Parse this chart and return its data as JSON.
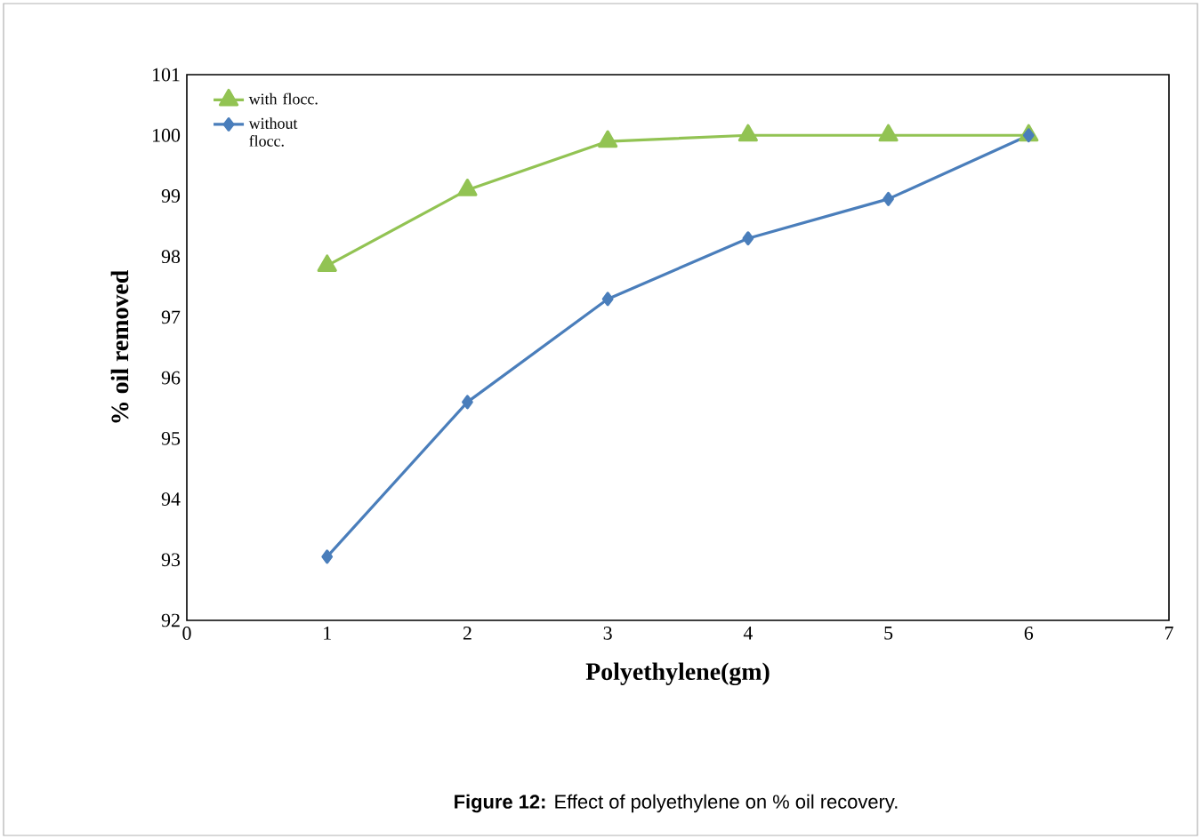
{
  "chart_data": {
    "type": "line",
    "xlabel": "Polyethylene(gm)",
    "ylabel": "% oil removed",
    "x": [
      1,
      2,
      3,
      4,
      5,
      6
    ],
    "series": [
      {
        "name": "with flocc.",
        "color": "#92c353",
        "marker": "triangle",
        "values": [
          97.85,
          99.1,
          99.9,
          100.0,
          100.0,
          100.0
        ]
      },
      {
        "name": "without flocc.",
        "color": "#4a7ebb",
        "marker": "diamond",
        "values": [
          93.05,
          95.6,
          97.3,
          98.3,
          98.95,
          100.0
        ]
      }
    ],
    "xlim": [
      0,
      7
    ],
    "ylim": [
      92,
      101
    ],
    "xticks": [
      0,
      1,
      2,
      3,
      4,
      5,
      6,
      7
    ],
    "yticks": [
      92,
      93,
      94,
      95,
      96,
      97,
      98,
      99,
      100,
      101
    ],
    "grid": false,
    "legend": "top left",
    "line_style": "solid",
    "annotations": [
      "**Figure 12:** Effect of polyethylene on % oil recovery."
    ]
  }
}
